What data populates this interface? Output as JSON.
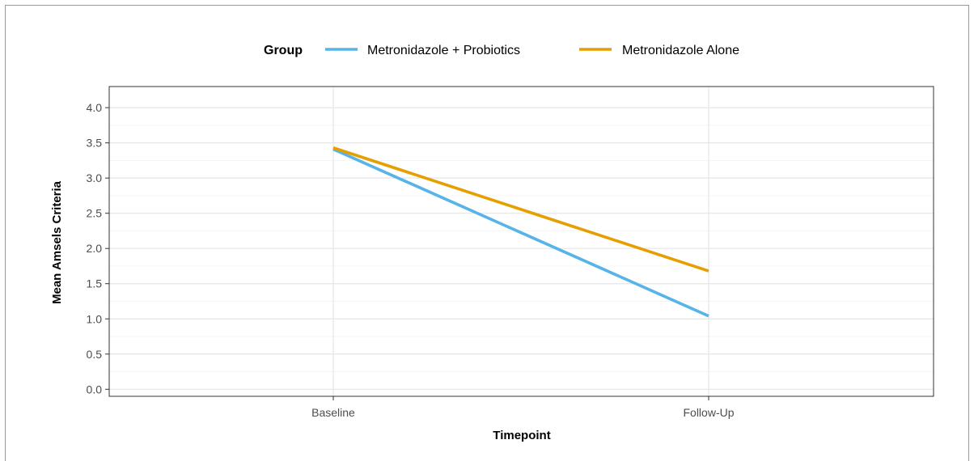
{
  "chart_data": {
    "type": "line",
    "title": "",
    "xlabel": "Timepoint",
    "ylabel": "Mean Amsels Criteria",
    "x": [
      "Baseline",
      "Follow-Up"
    ],
    "ylim": [
      -0.1,
      4.3
    ],
    "yticks": [
      "0.0",
      "0.5",
      "1.0",
      "1.5",
      "2.0",
      "2.5",
      "3.0",
      "3.5",
      "4.0"
    ],
    "grid": true,
    "legend": {
      "title": "Group",
      "position": "top"
    },
    "series": [
      {
        "name": "Metronidazole + Probiotics",
        "color": "#56B4E9",
        "values": [
          3.41,
          1.04
        ]
      },
      {
        "name": "Metronidazole Alone",
        "color": "#E69F00",
        "values": [
          3.43,
          1.68
        ]
      }
    ]
  }
}
